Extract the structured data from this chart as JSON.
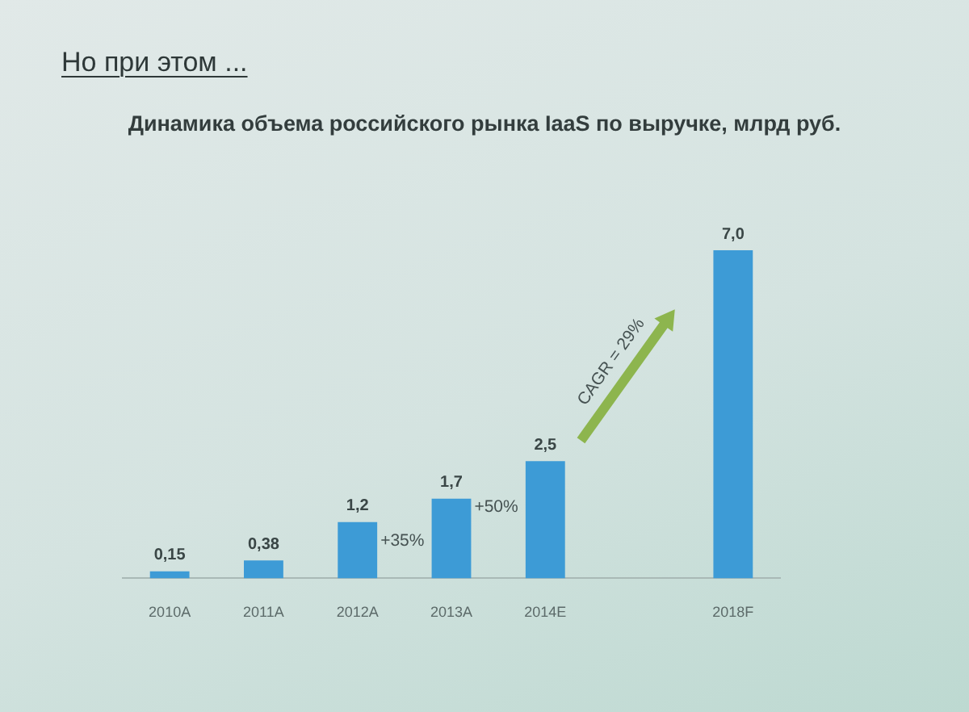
{
  "chart_data": {
    "type": "bar",
    "title": "Но при этом ...",
    "subtitle": "Динамика объема российского рынка IaaS по выручке, млрд руб.",
    "categories": [
      "2010A",
      "2011A",
      "2012A",
      "2013A",
      "2014E",
      null,
      "2018F"
    ],
    "values": [
      0.15,
      0.38,
      1.2,
      1.7,
      2.5,
      null,
      7.0
    ],
    "value_labels": [
      "0,15",
      "0,38",
      "1,2",
      "1,7",
      "2,5",
      null,
      "7,0"
    ],
    "color": "#3d9bd6",
    "annotations": [
      "+35%",
      "+50%",
      "CAGR = 29%"
    ],
    "tick_labels": "x"
  }
}
